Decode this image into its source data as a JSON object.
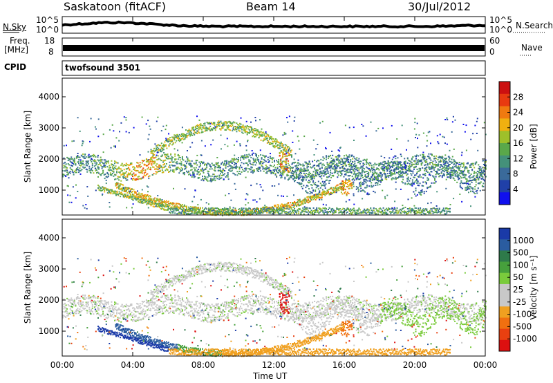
{
  "header": {
    "station": "Saskatoon (fitACF)",
    "beam": "Beam 14",
    "date": "30/Jul/2012"
  },
  "strips": {
    "nsky_label": "N.Sky",
    "nsky_ticks": [
      "10^5",
      "10^0"
    ],
    "nsearch_label": "N.Search",
    "nsearch_ticks": [
      "10^5",
      "10^0"
    ],
    "freq_label": "Freq.",
    "freq_unit": "[MHz]",
    "freq_ticks": [
      "18",
      "8"
    ],
    "nave_label": "Nave",
    "nave_ticks": [
      "60",
      "0"
    ],
    "cpid_label": "CPID",
    "cpid_value": "twofsound 3501"
  },
  "chart_data": [
    {
      "type": "heatmap",
      "parameter": "Power",
      "ylabel": "Slant Range [km]",
      "xlabel": "",
      "ylim": [
        200,
        4600
      ],
      "yticks": [
        "1000",
        "2000",
        "3000",
        "4000"
      ],
      "xlim_hours": [
        0,
        24
      ],
      "colorbar_label": "Power [dB]",
      "colorbar_ticks": [
        "4",
        "8",
        "12",
        "16",
        "20",
        "24",
        "28"
      ],
      "colorbar_colors": [
        "#1010ee",
        "#2040a8",
        "#3a6a9a",
        "#44917a",
        "#5aa84a",
        "#9ec02a",
        "#f0b010",
        "#f07a10",
        "#e83a10",
        "#cc1010"
      ],
      "features": [
        {
          "name": "band-near",
          "hours": [
            0,
            24
          ],
          "range_km": [
            1300,
            2100
          ]
        },
        {
          "name": "arc-upper",
          "hours": [
            6,
            13
          ],
          "range_km": [
            1800,
            3200
          ]
        },
        {
          "name": "arc-lower",
          "hours": [
            2,
            16
          ],
          "range_km": [
            300,
            1300
          ]
        }
      ]
    },
    {
      "type": "heatmap",
      "parameter": "Velocity",
      "ylabel": "Slant Range [km]",
      "xlabel": "Time UT",
      "ylim": [
        200,
        4600
      ],
      "yticks": [
        "1000",
        "2000",
        "3000",
        "4000"
      ],
      "xlim_hours": [
        0,
        24
      ],
      "xticks": [
        "00:00",
        "04:00",
        "08:00",
        "12:00",
        "16:00",
        "20:00",
        "00:00"
      ],
      "colorbar_label": "Velocity [m s⁻¹]",
      "colorbar_ticks": [
        "1000",
        "500",
        "100",
        "50",
        "25",
        "-25",
        "-100",
        "-500",
        "-1000"
      ],
      "colorbar_colors": [
        "#1a3aa8",
        "#2a5ca0",
        "#2e7a4a",
        "#46a03c",
        "#7acb3c",
        "#c8c8c8",
        "#c8c8c8",
        "#f0a020",
        "#f07010",
        "#e84010",
        "#dd1010"
      ]
    }
  ]
}
